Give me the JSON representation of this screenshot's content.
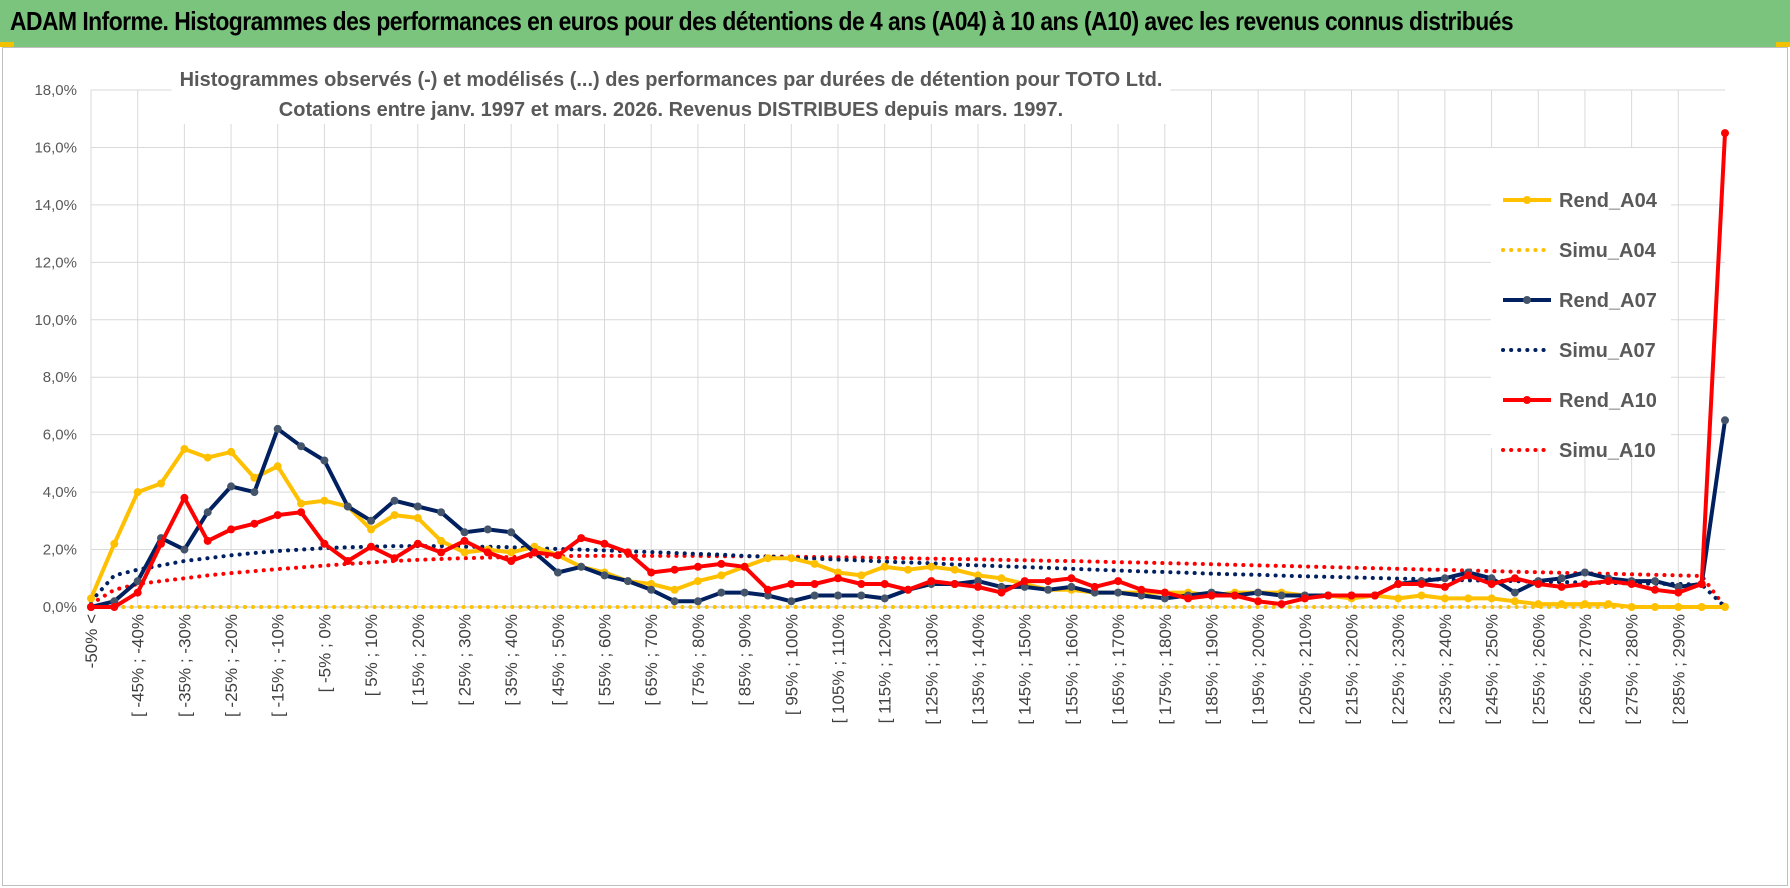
{
  "banner": {
    "title": "ADAM Informe. Histogrammes des performances en euros pour des détentions de 4 ans (A04) à 10 ans (A10) avec les revenus connus distribués"
  },
  "colors": {
    "banner_bg": "#7ac47d",
    "A04": "#ffc000",
    "A07": "#002060",
    "A10": "#ff0000",
    "marker_A07": "#44546a",
    "grid": "#d9d9d9"
  },
  "chart_data": {
    "type": "line",
    "title_line1": "Histogrammes observés (-) et modélisés (...) des performances par durées de détention pour TOTO Ltd.",
    "title_line2": "Cotations entre janv. 1997 et mars. 2026. Revenus DISTRIBUES depuis mars. 1997.",
    "xlabel": "",
    "ylabel": "",
    "ylim": [
      0,
      18
    ],
    "y_ticks": [
      "0,0%",
      "2,0%",
      "4,0%",
      "6,0%",
      "8,0%",
      "10,0%",
      "12,0%",
      "14,0%",
      "16,0%",
      "18,0%"
    ],
    "grid": true,
    "legend_position": "right",
    "x_tick_labels": [
      "-50% <",
      "[ -45% ; -40%",
      "[ -35% ; -30%",
      "[ -25% ; -20%",
      "[ -15% ; -10%",
      "[ -5% ; 0%",
      "[ 5% ; 10%",
      "[ 15% ; 20%",
      "[ 25% ; 30%",
      "[ 35% ; 40%",
      "[ 45% ; 50%",
      "[ 55% ; 60%",
      "[ 65% ; 70%",
      "[ 75% ; 80%",
      "[ 85% ; 90%",
      "[ 95% ; 100%",
      "[ 105% ; 110%",
      "[ 115% ; 120%",
      "[ 125% ; 130%",
      "[ 135% ; 140%",
      "[ 145% ; 150%",
      "[ 155% ; 160%",
      "[ 165% ; 170%",
      "[ 175% ; 180%",
      "[ 185% ; 190%",
      "[ 195% ; 200%",
      "[ 205% ; 210%",
      "[ 215% ; 220%",
      "[ 225% ; 230%",
      "[ 235% ; 240%",
      "[ 245% ; 250%",
      "[ 255% ; 260%",
      "[ 265% ; 270%",
      "[ 275% ; 280%",
      "[ 285% ; 290%"
    ],
    "series": [
      {
        "name": "Rend_A04",
        "style": "solid",
        "color": "#ffc000",
        "values": [
          0.3,
          2.2,
          4.0,
          4.3,
          5.5,
          5.2,
          5.4,
          4.5,
          4.9,
          3.6,
          3.7,
          3.5,
          2.7,
          3.2,
          3.1,
          2.3,
          1.9,
          2.0,
          1.9,
          2.1,
          1.8,
          1.4,
          1.2,
          0.9,
          0.8,
          0.6,
          0.9,
          1.1,
          1.4,
          1.7,
          1.7,
          1.5,
          1.2,
          1.1,
          1.4,
          1.3,
          1.4,
          1.3,
          1.1,
          1.0,
          0.8,
          0.6,
          0.6,
          0.5,
          0.5,
          0.5,
          0.5,
          0.5,
          0.4,
          0.5,
          0.5,
          0.5,
          0.4,
          0.4,
          0.3,
          0.4,
          0.3,
          0.4,
          0.3,
          0.3,
          0.3,
          0.2,
          0.1,
          0.1,
          0.1,
          0.1,
          0.0,
          0.0,
          0.0,
          0.0,
          0.0
        ]
      },
      {
        "name": "Simu_A04",
        "style": "dotted",
        "color": "#ffc000",
        "values": [
          0.0,
          0.0,
          0.0,
          0.0,
          0.0,
          0.0,
          0.0,
          0.0,
          0.0,
          0.0,
          0.0,
          0.0,
          0.0,
          0.0,
          0.0,
          0.0,
          0.0,
          0.0,
          0.0,
          0.0,
          0.0,
          0.0,
          0.0,
          0.0,
          0.0,
          0.0,
          0.0,
          0.0,
          0.0,
          0.0,
          0.0,
          0.0,
          0.0,
          0.0,
          0.0,
          0.0,
          0.0,
          0.0,
          0.0,
          0.0,
          0.0,
          0.0,
          0.0,
          0.0,
          0.0,
          0.0,
          0.0,
          0.0,
          0.0,
          0.0,
          0.0,
          0.0,
          0.0,
          0.0,
          0.0,
          0.0,
          0.0,
          0.0,
          0.0,
          0.0,
          0.0,
          0.0,
          0.0,
          0.0,
          0.0,
          0.0,
          0.0,
          0.0,
          0.0,
          0.0,
          0.0
        ]
      },
      {
        "name": "Rend_A07",
        "style": "solid",
        "color": "#002060",
        "values": [
          0.0,
          0.2,
          0.9,
          2.4,
          2.0,
          3.3,
          4.2,
          4.0,
          6.2,
          5.6,
          5.1,
          3.5,
          3.0,
          3.7,
          3.5,
          3.3,
          2.6,
          2.7,
          2.6,
          1.9,
          1.2,
          1.4,
          1.1,
          0.9,
          0.6,
          0.2,
          0.2,
          0.5,
          0.5,
          0.4,
          0.2,
          0.4,
          0.4,
          0.4,
          0.3,
          0.6,
          0.8,
          0.8,
          0.9,
          0.7,
          0.7,
          0.6,
          0.7,
          0.5,
          0.5,
          0.4,
          0.3,
          0.4,
          0.5,
          0.4,
          0.5,
          0.4,
          0.4,
          0.4,
          0.4,
          0.4,
          0.8,
          0.9,
          1.0,
          1.2,
          1.0,
          0.5,
          0.9,
          1.0,
          1.2,
          1.0,
          0.9,
          0.9,
          0.7,
          0.8,
          6.5
        ]
      },
      {
        "name": "Simu_A07",
        "style": "dotted",
        "color": "#002060",
        "values": [
          0.2,
          1.1,
          1.3,
          1.45,
          1.6,
          1.7,
          1.8,
          1.88,
          1.95,
          2.0,
          2.05,
          2.08,
          2.1,
          2.12,
          2.12,
          2.12,
          2.1,
          2.1,
          2.08,
          2.05,
          2.02,
          2.0,
          1.97,
          1.94,
          1.91,
          1.88,
          1.85,
          1.82,
          1.78,
          1.75,
          1.72,
          1.68,
          1.65,
          1.62,
          1.58,
          1.55,
          1.52,
          1.48,
          1.45,
          1.42,
          1.39,
          1.36,
          1.33,
          1.3,
          1.27,
          1.24,
          1.22,
          1.19,
          1.16,
          1.14,
          1.12,
          1.09,
          1.07,
          1.05,
          1.03,
          1.01,
          0.99,
          0.97,
          0.95,
          0.93,
          0.92,
          0.9,
          0.88,
          0.87,
          0.85,
          0.84,
          0.82,
          0.81,
          0.8,
          0.78,
          0.0
        ]
      },
      {
        "name": "Rend_A10",
        "style": "solid",
        "color": "#ff0000",
        "values": [
          0.0,
          0.0,
          0.5,
          2.2,
          3.8,
          2.3,
          2.7,
          2.9,
          3.2,
          3.3,
          2.2,
          1.6,
          2.1,
          1.7,
          2.2,
          1.9,
          2.3,
          1.9,
          1.6,
          1.9,
          1.8,
          2.4,
          2.2,
          1.9,
          1.2,
          1.3,
          1.4,
          1.5,
          1.4,
          0.6,
          0.8,
          0.8,
          1.0,
          0.8,
          0.8,
          0.6,
          0.9,
          0.8,
          0.7,
          0.5,
          0.9,
          0.9,
          1.0,
          0.7,
          0.9,
          0.6,
          0.5,
          0.3,
          0.4,
          0.4,
          0.2,
          0.1,
          0.3,
          0.4,
          0.4,
          0.4,
          0.8,
          0.8,
          0.7,
          1.1,
          0.8,
          1.0,
          0.8,
          0.7,
          0.8,
          0.9,
          0.8,
          0.6,
          0.5,
          0.8,
          16.5
        ]
      },
      {
        "name": "Simu_A10",
        "style": "dotted",
        "color": "#ff0000",
        "values": [
          0.1,
          0.6,
          0.8,
          0.9,
          1.0,
          1.1,
          1.18,
          1.25,
          1.32,
          1.38,
          1.44,
          1.5,
          1.55,
          1.6,
          1.64,
          1.67,
          1.7,
          1.72,
          1.74,
          1.76,
          1.77,
          1.78,
          1.78,
          1.78,
          1.78,
          1.78,
          1.78,
          1.77,
          1.77,
          1.76,
          1.75,
          1.74,
          1.73,
          1.72,
          1.71,
          1.7,
          1.68,
          1.67,
          1.66,
          1.64,
          1.63,
          1.61,
          1.6,
          1.58,
          1.56,
          1.55,
          1.53,
          1.51,
          1.49,
          1.47,
          1.45,
          1.43,
          1.41,
          1.39,
          1.37,
          1.35,
          1.33,
          1.31,
          1.29,
          1.27,
          1.25,
          1.23,
          1.21,
          1.19,
          1.17,
          1.16,
          1.14,
          1.12,
          1.1,
          1.08,
          0.0
        ]
      }
    ]
  }
}
